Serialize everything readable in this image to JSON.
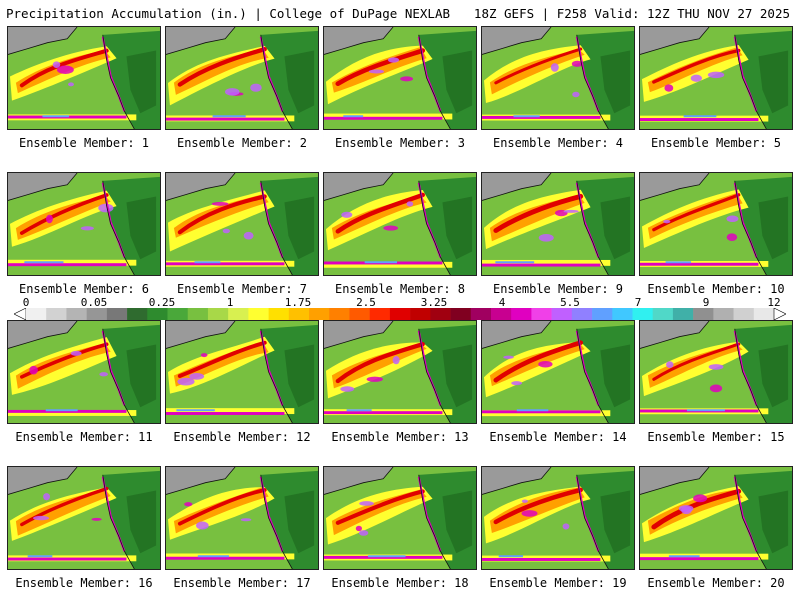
{
  "header": {
    "left_title": "Precipitation Accumulation (in.) | College of DuPage NEXLAB",
    "right_title": "18Z GEFS | F258 Valid: 12Z THU NOV 27 2025"
  },
  "chart_data": {
    "type": "heatmap",
    "title": "Precipitation Accumulation (in.)",
    "source": "College of DuPage NEXLAB",
    "model": "18Z GEFS",
    "forecast_hour": "F258",
    "valid_time": "12Z THU NOV 27 2025",
    "variable_units": "in.",
    "panels": [
      {
        "label": "Ensemble Member: 1",
        "member": 1
      },
      {
        "label": "Ensemble Member: 2",
        "member": 2
      },
      {
        "label": "Ensemble Member: 3",
        "member": 3
      },
      {
        "label": "Ensemble Member: 4",
        "member": 4
      },
      {
        "label": "Ensemble Member: 5",
        "member": 5
      },
      {
        "label": "Ensemble Member: 6",
        "member": 6
      },
      {
        "label": "Ensemble Member: 7",
        "member": 7
      },
      {
        "label": "Ensemble Member: 8",
        "member": 8
      },
      {
        "label": "Ensemble Member: 9",
        "member": 9
      },
      {
        "label": "Ensemble Member: 10",
        "member": 10
      },
      {
        "label": "Ensemble Member: 11",
        "member": 11
      },
      {
        "label": "Ensemble Member: 12",
        "member": 12
      },
      {
        "label": "Ensemble Member: 13",
        "member": 13
      },
      {
        "label": "Ensemble Member: 14",
        "member": 14
      },
      {
        "label": "Ensemble Member: 15",
        "member": 15
      },
      {
        "label": "Ensemble Member: 16",
        "member": 16
      },
      {
        "label": "Ensemble Member: 17",
        "member": 17
      },
      {
        "label": "Ensemble Member: 18",
        "member": 18
      },
      {
        "label": "Ensemble Member: 19",
        "member": 19
      },
      {
        "label": "Ensemble Member: 20",
        "member": 20
      }
    ],
    "colorbar": {
      "tick_labels": [
        "0",
        "0.05",
        "0.25",
        "1",
        "1.75",
        "2.5",
        "3.25",
        "4",
        "5.5",
        "7",
        "9",
        "12"
      ],
      "range": [
        0,
        12
      ],
      "colors": [
        "#f0f0f0",
        "#d2d2d2",
        "#b4b4b4",
        "#969696",
        "#787878",
        "#2f6b2f",
        "#2e8b2e",
        "#4aa83a",
        "#78c040",
        "#a8d848",
        "#d8f050",
        "#ffff30",
        "#ffe000",
        "#ffc000",
        "#ffa000",
        "#ff8000",
        "#ff5a00",
        "#ff2a00",
        "#e00000",
        "#c00000",
        "#a00010",
        "#800020",
        "#a00060",
        "#c80090",
        "#e000c0",
        "#f040e8",
        "#c060ff",
        "#9080ff",
        "#60a0ff",
        "#40c8ff",
        "#30f0f0",
        "#50d8c8",
        "#40b0a8",
        "#909090",
        "#b0b0b0",
        "#d0d0d0",
        "#e8e8e8"
      ]
    }
  },
  "palette": {
    "land": "#2e8b2e",
    "land_dark": "#1f6b1f",
    "ocean_wet": "#78c040",
    "yellow": "#ffff30",
    "orange": "#ffa000",
    "red": "#e00000",
    "magenta": "#e000c0",
    "purple": "#c060ff",
    "blue": "#60a0ff",
    "gray": "#9a9a9a",
    "white": "#e8e8e8"
  }
}
